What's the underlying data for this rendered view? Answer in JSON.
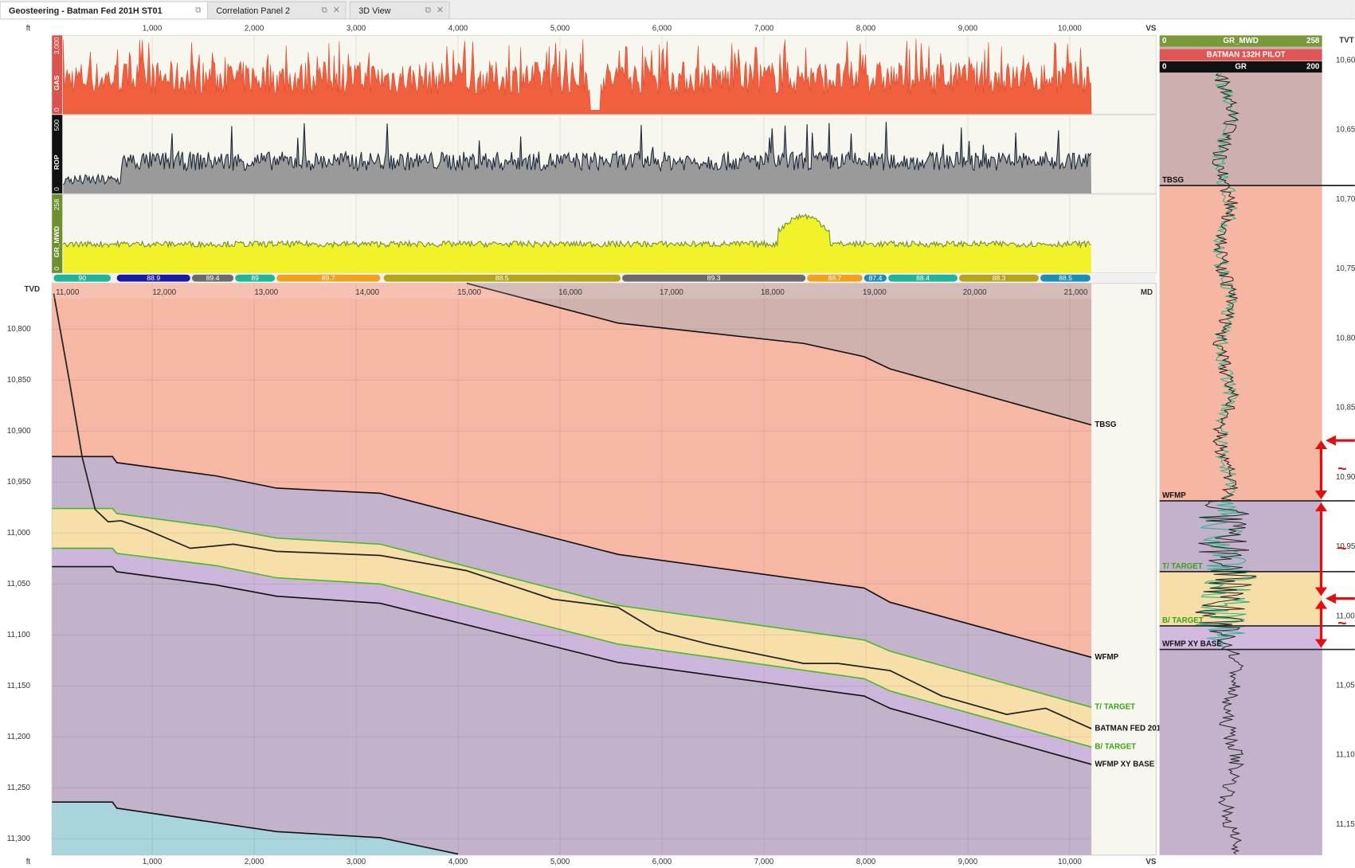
{
  "tabs": [
    "Geosteering - Batman Fed 201H ST01",
    "Correlation Panel 2",
    "3D View"
  ],
  "vs_axis": {
    "unit": "ft",
    "label": "VS",
    "lim": [
      17,
      10847
    ],
    "ticks": [
      {
        "value": 1000,
        "label": "1,000"
      },
      {
        "value": 2000,
        "label": "2,000"
      },
      {
        "value": 3000,
        "label": "3,000"
      },
      {
        "value": 4000,
        "label": "4,000"
      },
      {
        "value": 5000,
        "label": "5,000"
      },
      {
        "value": 6000,
        "label": "6,000"
      },
      {
        "value": 7000,
        "label": "7,000"
      },
      {
        "value": 8000,
        "label": "8,000"
      },
      {
        "value": 9000,
        "label": "9,000"
      },
      {
        "value": 10000,
        "label": "10,000"
      }
    ]
  },
  "tracks": [
    {
      "name": "GAS",
      "min": 0,
      "max": {
        "value": 3000,
        "label": "3,000"
      },
      "color": "#f0603f",
      "strip": "#d9534f"
    },
    {
      "name": "ROP",
      "min": 0,
      "max": 500,
      "color": "#1c2a3a",
      "strip": "#111"
    },
    {
      "name": "GR_MWD",
      "min": 0,
      "max": 258,
      "color": "#f2f22a",
      "strip": "#6e8f2e"
    }
  ],
  "dip_segments": [
    {
      "dip": 90,
      "vs": [
        34,
        593
      ],
      "color": "#1fb596"
    },
    {
      "dip": 88.9,
      "vs": [
        653,
        1373
      ],
      "color": "#1a1aa8"
    },
    {
      "dip": 89.4,
      "vs": [
        1390,
        1797
      ],
      "color": "#6b6b6b"
    },
    {
      "dip": 89,
      "vs": [
        1814,
        2203
      ],
      "color": "#1fb596"
    },
    {
      "dip": 89.7,
      "vs": [
        2220,
        3237
      ],
      "color": "#f0a21a"
    },
    {
      "dip": 88.5,
      "vs": [
        3271,
        5593
      ],
      "color": "#b5a418"
    },
    {
      "dip": 89.3,
      "vs": [
        5610,
        7407
      ],
      "color": "#6b6b6b"
    },
    {
      "dip": 88.7,
      "vs": [
        7424,
        7966
      ],
      "color": "#f0a21a"
    },
    {
      "dip": 87.4,
      "vs": [
        7983,
        8203
      ],
      "color": "#1a8fb5"
    },
    {
      "dip": 88.4,
      "vs": [
        8220,
        8898
      ],
      "color": "#1fb596"
    },
    {
      "dip": 88.3,
      "vs": [
        8915,
        9695
      ],
      "color": "#b5a418"
    },
    {
      "dip": 88.5,
      "vs": [
        9712,
        10203
      ],
      "color": "#1a8fb5"
    }
  ],
  "section": {
    "tvd_label": "TVD",
    "md_label": "MD",
    "tvd_lim": [
      10755,
      11316
    ],
    "tvd_ticks": [
      {
        "value": 10800,
        "label": "10,800"
      },
      {
        "value": 10850,
        "label": "10,850"
      },
      {
        "value": 10900,
        "label": "10,900"
      },
      {
        "value": 10950,
        "label": "10,950"
      },
      {
        "value": 11000,
        "label": "11,000"
      },
      {
        "value": 11050,
        "label": "11,050"
      },
      {
        "value": 11100,
        "label": "11,100"
      },
      {
        "value": 11150,
        "label": "11,150"
      },
      {
        "value": 11200,
        "label": "11,200"
      },
      {
        "value": 11250,
        "label": "11,250"
      },
      {
        "value": 11300,
        "label": "11,300"
      }
    ],
    "md_ticks": [
      {
        "value": 11000,
        "label": "11,000",
        "vs": 169
      },
      {
        "value": 12000,
        "label": "12,000",
        "vs": 1119
      },
      {
        "value": 13000,
        "label": "13,000",
        "vs": 2119
      },
      {
        "value": 14000,
        "label": "14,000",
        "vs": 3110
      },
      {
        "value": 15000,
        "label": "15,000",
        "vs": 4110
      },
      {
        "value": 16000,
        "label": "16,000",
        "vs": 5102
      },
      {
        "value": 17000,
        "label": "17,000",
        "vs": 6093
      },
      {
        "value": 18000,
        "label": "18,000",
        "vs": 7085
      },
      {
        "value": 19000,
        "label": "19,000",
        "vs": 8085
      },
      {
        "value": 20000,
        "label": "20,000",
        "vs": 9068
      },
      {
        "value": 21000,
        "label": "21,000",
        "vs": 10059
      }
    ],
    "background": "#f6b7a4"
  },
  "horizons": [
    {
      "name": "TBSG",
      "line": "#111",
      "label_color": "#111",
      "fill": "#cfb1ad",
      "fill_side": "above",
      "vs": [
        4085,
        5568,
        7390,
        7983,
        8237,
        10212
      ],
      "tvd": [
        10755,
        10794,
        10814,
        10827,
        10839,
        10894
      ]
    },
    {
      "name": "WFMP",
      "line": "#111",
      "label_color": "#111",
      "fill": "#c4b3cc",
      "fill_side": "below",
      "vs": [
        17,
        610,
        653,
        1627,
        2220,
        3237,
        5568,
        7983,
        8237,
        10212
      ],
      "tvd": [
        10925,
        10925,
        10931,
        10944,
        10956,
        10961,
        11021,
        11054,
        11068,
        11122
      ]
    },
    {
      "name": "T/ TARGET",
      "line": "#4fb82a",
      "label_color": "#3aa318",
      "fill": "#f7dfaa",
      "fill_side": "below",
      "vs": [
        17,
        610,
        653,
        1627,
        2220,
        3237,
        5568,
        7983,
        8237,
        10212
      ],
      "tvd": [
        10976,
        10976,
        10981,
        10994,
        11005,
        11011,
        11071,
        11105,
        11116,
        11171
      ]
    },
    {
      "name": "B/ TARGET",
      "line": "#4fb82a",
      "label_color": "#3aa318",
      "fill": "#cdb6dc",
      "fill_side": "below",
      "vs": [
        17,
        610,
        653,
        1627,
        2220,
        3237,
        5568,
        7983,
        8237,
        10212
      ],
      "tvd": [
        11015,
        11015,
        11020,
        11032,
        11044,
        11050,
        11109,
        11143,
        11155,
        11210
      ]
    },
    {
      "name": "WFMP XY BASE",
      "line": "#111",
      "label_color": "#111",
      "fill": "#c2b3cb",
      "fill_side": "below",
      "vs": [
        17,
        610,
        653,
        1627,
        2220,
        3237,
        5568,
        7983,
        8237,
        10212
      ],
      "tvd": [
        11033,
        11033,
        11038,
        11051,
        11062,
        11069,
        11127,
        11160,
        11172,
        11227
      ]
    },
    {
      "line": "#111",
      "fill": "#a8d4dc",
      "fill_side": "below",
      "vs": [
        17,
        610,
        653,
        2220,
        3237,
        4000
      ],
      "tvd": [
        11264,
        11264,
        11270,
        11293,
        11299,
        11315
      ]
    }
  ],
  "wellbore": {
    "name": "BATMAN FED 201",
    "vs": [
      34,
      186,
      314,
      441,
      568,
      695,
      949,
      1373,
      1797,
      2220,
      3237,
      4085,
      4932,
      5568,
      5949,
      6458,
      7390,
      7729,
      8237,
      8746,
      9381,
      9763,
      10212
    ],
    "tvd": [
      10765,
      10850,
      10926,
      10977,
      10989,
      10988,
      10997,
      11015,
      11011,
      11018,
      11022,
      11037,
      11065,
      11073,
      11096,
      11109,
      11128,
      11128,
      11135,
      11160,
      11178,
      11172,
      11192
    ]
  },
  "pilot": {
    "curve_header": {
      "min": 0,
      "name": "GR_MWD",
      "max": 258
    },
    "well": "BATMAN 132H PILOT",
    "curve2": {
      "min": 0,
      "name": "GR",
      "max": 200
    },
    "tvt_label": "TVT",
    "tvt_lim": [
      10582,
      11172
    ],
    "top_fill": "#cdb0ad",
    "tvt_ticks": [
      {
        "value": 10600,
        "label": "10,600"
      },
      {
        "value": 10650,
        "label": "10,650"
      },
      {
        "value": 10700,
        "label": "10,700"
      },
      {
        "value": 10750,
        "label": "10,750"
      },
      {
        "value": 10800,
        "label": "10,800"
      },
      {
        "value": 10850,
        "label": "10,850"
      },
      {
        "value": 10900,
        "label": "10,900"
      },
      {
        "value": 10950,
        "label": "10,950"
      },
      {
        "value": 11000,
        "label": "11,000"
      },
      {
        "value": 11050,
        "label": "11,050"
      },
      {
        "value": 11100,
        "label": "11,100"
      },
      {
        "value": 11150,
        "label": "11,150"
      }
    ],
    "tops": [
      {
        "name": "TBSG",
        "tvt": 10690,
        "fill": "#f6b6a3",
        "label_color": "#111"
      },
      {
        "name": "WFMP",
        "tvt": 10917,
        "fill": "#c4b2cc",
        "label_color": "#111"
      },
      {
        "name": "T/ TARGET",
        "tvt": 10968,
        "fill": "#f6dea6",
        "label_color": "#3aa318"
      },
      {
        "name": "B/ TARGET",
        "tvt": 11007,
        "fill": "#d2b9e0",
        "label_color": "#3aa318"
      },
      {
        "name": "WFMP XY BASE",
        "tvt": 11024,
        "fill": "#c4b2cc",
        "label_color": "#111"
      }
    ],
    "annotations": [
      "~",
      "~",
      "~"
    ]
  }
}
